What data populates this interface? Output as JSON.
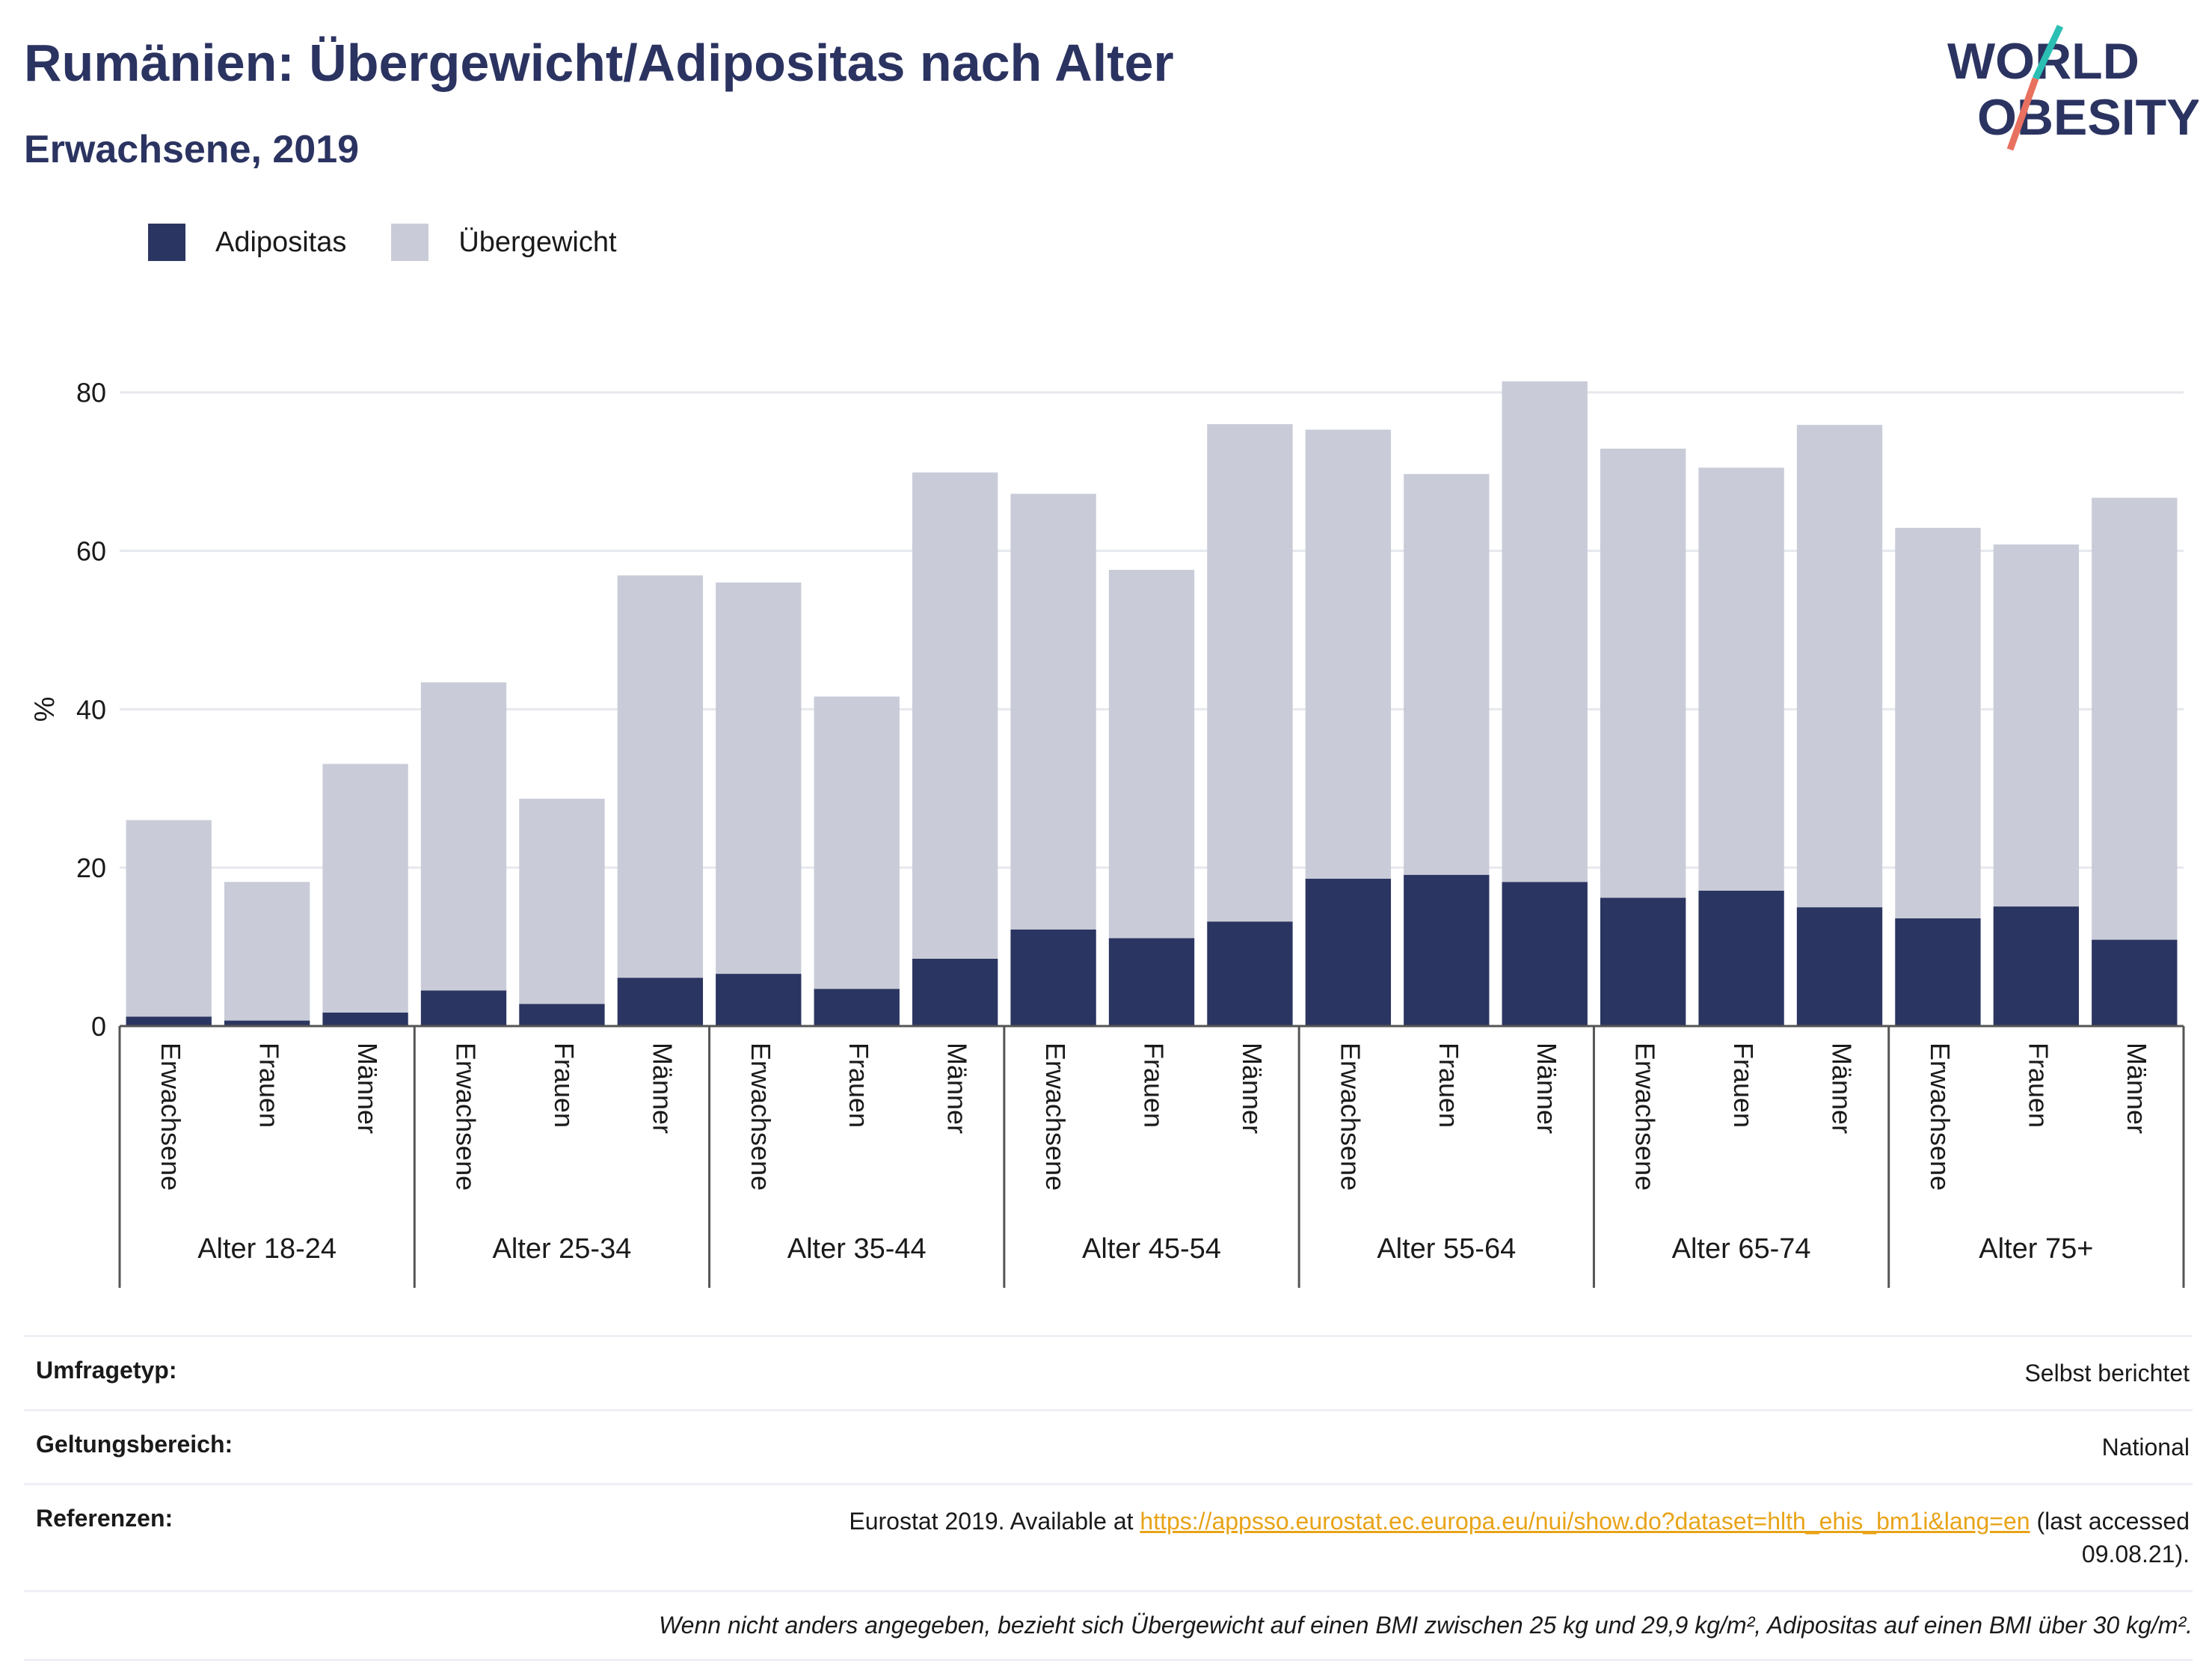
{
  "header": {
    "title": "Rumänien: Übergewicht/Adipositas nach Alter",
    "subtitle": "Erwachsene, 2019"
  },
  "logo": {
    "line1": "WORLD",
    "line2": "OBESITY"
  },
  "legend": {
    "items": [
      {
        "label": "Adipositas",
        "color": "#2b3561"
      },
      {
        "label": "Übergewicht",
        "color": "#c9ccd8"
      }
    ]
  },
  "chart_data": {
    "type": "bar",
    "stacked": true,
    "ylabel": "%",
    "ylim": [
      0,
      88
    ],
    "yticks": [
      0,
      20,
      40,
      60,
      80
    ],
    "grid": true,
    "legend_position": "top-left",
    "groups": [
      "Alter 18-24",
      "Alter 25-34",
      "Alter 35-44",
      "Alter 45-54",
      "Alter 55-64",
      "Alter 65-74",
      "Alter 75+"
    ],
    "subcategories": [
      "Erwachsene",
      "Frauen",
      "Männer"
    ],
    "series": [
      {
        "name": "Adipositas",
        "color": "#2b3561",
        "values": [
          1.2,
          0.7,
          1.7,
          4.5,
          2.8,
          6.1,
          6.6,
          4.7,
          8.5,
          12.2,
          11.1,
          13.2,
          18.6,
          19.1,
          18.2,
          16.2,
          17.1,
          15.0,
          13.6,
          15.1,
          10.9
        ]
      },
      {
        "name": "Übergewicht",
        "color": "#c9ccd8",
        "values": [
          24.8,
          17.5,
          31.4,
          38.9,
          25.9,
          50.8,
          49.4,
          36.9,
          61.4,
          55.0,
          46.5,
          62.8,
          56.7,
          50.6,
          63.2,
          56.7,
          53.4,
          60.9,
          49.3,
          45.7,
          55.8
        ]
      }
    ]
  },
  "info_table": {
    "rows": [
      {
        "key": "Umfragetyp:",
        "value": "Selbst berichtet"
      },
      {
        "key": "Geltungsbereich:",
        "value": "National"
      }
    ],
    "reference": {
      "key": "Referenzen:",
      "prefix": "Eurostat 2019. Available at ",
      "link": "https://appsso.eurostat.ec.europa.eu/nui/show.do?dataset=hlth_ehis_bm1i&lang=en",
      "suffix": " (last accessed",
      "suffix2": "09.08.21)."
    },
    "note": "Wenn nicht anders angegeben, bezieht sich Übergewicht auf einen BMI zwischen 25 kg und 29,9 kg/m², Adipositas auf einen BMI über 30 kg/m²."
  }
}
